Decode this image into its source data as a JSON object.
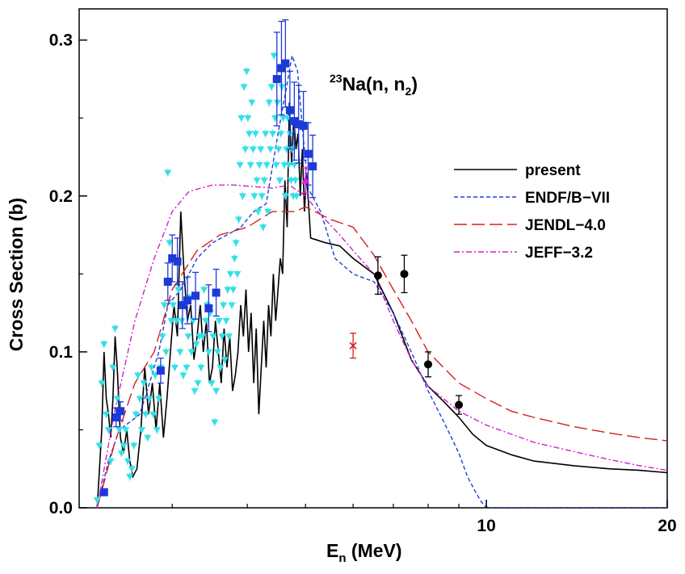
{
  "chart_data": {
    "type": "line",
    "annotation": {
      "sup": "23",
      "main": "Na(n, n",
      "sub": "2",
      "close": ")"
    },
    "xlabel": {
      "main": "E",
      "sub": "n",
      "rest": " (MeV)"
    },
    "ylabel": "Cross Section (b)",
    "x_scale": "log",
    "xlim": [
      2.1,
      20
    ],
    "ylim": [
      0,
      0.32
    ],
    "x_ticks_labeled": [
      {
        "value": 10,
        "label": "10"
      },
      {
        "value": 20,
        "label": "20"
      }
    ],
    "x_ticks_minor": [
      3,
      4,
      5,
      6,
      7,
      8,
      9
    ],
    "y_ticks": [
      {
        "value": 0.0,
        "label": "0.0"
      },
      {
        "value": 0.1,
        "label": "0.1"
      },
      {
        "value": 0.2,
        "label": "0.2"
      },
      {
        "value": 0.3,
        "label": "0.3"
      }
    ],
    "legend_position": "right",
    "series": [
      {
        "name": "present",
        "color": "#000000",
        "dash": "",
        "width": 1.6,
        "x": [
          2.25,
          2.29,
          2.31,
          2.33,
          2.35,
          2.37,
          2.39,
          2.41,
          2.43,
          2.46,
          2.49,
          2.52,
          2.55,
          2.58,
          2.62,
          2.66,
          2.7,
          2.74,
          2.78,
          2.82,
          2.86,
          2.9,
          2.94,
          2.98,
          3.02,
          3.06,
          3.1,
          3.14,
          3.18,
          3.22,
          3.26,
          3.3,
          3.34,
          3.38,
          3.42,
          3.46,
          3.5,
          3.54,
          3.58,
          3.62,
          3.66,
          3.7,
          3.74,
          3.78,
          3.82,
          3.86,
          3.9,
          3.94,
          3.98,
          4.02,
          4.06,
          4.1,
          4.14,
          4.18,
          4.22,
          4.26,
          4.3,
          4.34,
          4.38,
          4.42,
          4.46,
          4.5,
          4.54,
          4.58,
          4.62,
          4.66,
          4.7,
          4.74,
          4.78,
          4.82,
          4.86,
          4.9,
          4.94,
          4.98,
          5.02,
          5.1,
          5.2,
          5.4,
          5.7,
          6.0,
          6.5,
          7.0,
          7.5,
          8.0,
          8.5,
          9.0,
          9.5,
          10,
          11,
          12,
          14,
          16,
          18,
          20
        ],
        "y": [
          0.0,
          0.05,
          0.1,
          0.07,
          0.06,
          0.045,
          0.07,
          0.11,
          0.09,
          0.045,
          0.035,
          0.05,
          0.03,
          0.02,
          0.025,
          0.05,
          0.09,
          0.06,
          0.08,
          0.05,
          0.08,
          0.045,
          0.07,
          0.1,
          0.13,
          0.11,
          0.19,
          0.15,
          0.12,
          0.13,
          0.095,
          0.11,
          0.13,
          0.1,
          0.12,
          0.08,
          0.09,
          0.12,
          0.1,
          0.08,
          0.115,
          0.09,
          0.11,
          0.075,
          0.085,
          0.1,
          0.13,
          0.11,
          0.14,
          0.1,
          0.125,
          0.08,
          0.115,
          0.06,
          0.09,
          0.12,
          0.09,
          0.13,
          0.11,
          0.15,
          0.12,
          0.14,
          0.16,
          0.15,
          0.21,
          0.18,
          0.26,
          0.22,
          0.25,
          0.23,
          0.24,
          0.2,
          0.23,
          0.19,
          0.215,
          0.173,
          0.172,
          0.17,
          0.168,
          0.16,
          0.15,
          0.125,
          0.095,
          0.078,
          0.068,
          0.058,
          0.047,
          0.04,
          0.034,
          0.03,
          0.027,
          0.025,
          0.024,
          0.0225
        ]
      },
      {
        "name": "ENDF/B−VII",
        "color": "#1f3fd6",
        "dash": "5,3",
        "width": 1.4,
        "x": [
          2.25,
          2.35,
          2.45,
          2.55,
          2.65,
          2.75,
          2.85,
          2.95,
          3.1,
          3.3,
          3.5,
          3.7,
          3.9,
          4.1,
          4.3,
          4.5,
          4.65,
          4.75,
          4.85,
          4.95,
          5.05,
          5.3,
          5.6,
          6.0,
          6.5,
          7.0,
          7.5,
          8.0,
          8.5,
          9.0,
          9.3,
          9.6,
          9.8,
          9.95,
          10.1,
          11,
          14,
          20
        ],
        "y": [
          0.0,
          0.03,
          0.05,
          0.055,
          0.06,
          0.08,
          0.1,
          0.13,
          0.14,
          0.16,
          0.17,
          0.175,
          0.18,
          0.19,
          0.195,
          0.24,
          0.27,
          0.29,
          0.28,
          0.24,
          0.205,
          0.19,
          0.16,
          0.15,
          0.145,
          0.125,
          0.1,
          0.075,
          0.055,
          0.035,
          0.02,
          0.01,
          0.004,
          0.001,
          0.0,
          0.0,
          0.0,
          0.0
        ]
      },
      {
        "name": "JENDL−4.0",
        "color": "#d42020",
        "dash": "16,6",
        "width": 1.4,
        "x": [
          2.25,
          2.4,
          2.6,
          2.8,
          3.0,
          3.3,
          3.6,
          4.0,
          4.4,
          4.8,
          5.0,
          5.5,
          6.0,
          6.5,
          7.0,
          7.5,
          8.0,
          9.0,
          10,
          11,
          12,
          14,
          16,
          18,
          20
        ],
        "y": [
          0.0,
          0.04,
          0.08,
          0.1,
          0.14,
          0.165,
          0.175,
          0.18,
          0.19,
          0.19,
          0.193,
          0.185,
          0.18,
          0.162,
          0.14,
          0.12,
          0.1,
          0.08,
          0.07,
          0.062,
          0.058,
          0.052,
          0.048,
          0.045,
          0.043
        ]
      },
      {
        "name": "JEFF−3.2",
        "color": "#d020d0",
        "dash": "7,3,2,3",
        "width": 1.4,
        "x": [
          2.25,
          2.4,
          2.6,
          2.8,
          3.0,
          3.2,
          3.5,
          3.8,
          4.1,
          4.4,
          4.7,
          5.0,
          5.3,
          5.7,
          6.0,
          6.5,
          7.0,
          7.5,
          8.0,
          9.0,
          10,
          12,
          14,
          16,
          18,
          20
        ],
        "y": [
          0.0,
          0.06,
          0.12,
          0.16,
          0.19,
          0.203,
          0.207,
          0.207,
          0.206,
          0.205,
          0.207,
          0.2,
          0.188,
          0.175,
          0.165,
          0.15,
          0.12,
          0.095,
          0.078,
          0.062,
          0.053,
          0.042,
          0.036,
          0.031,
          0.027,
          0.024
        ]
      }
    ],
    "markers": [
      {
        "name": "",
        "shape": "triangle-down",
        "color": "#33e0e8",
        "x": [
          2.25,
          2.27,
          2.29,
          2.31,
          2.33,
          2.35,
          2.37,
          2.39,
          2.41,
          2.43,
          2.45,
          2.47,
          2.49,
          2.51,
          2.53,
          2.55,
          2.57,
          2.59,
          2.61,
          2.63,
          2.65,
          2.67,
          2.69,
          2.71,
          2.73,
          2.75,
          2.77,
          2.79,
          2.81,
          2.83,
          2.85,
          2.87,
          2.89,
          2.91,
          2.93,
          2.95,
          2.97,
          2.99,
          3.01,
          3.03,
          3.05,
          3.07,
          3.09,
          3.11,
          3.13,
          3.15,
          3.17,
          3.19,
          3.21,
          3.23,
          3.25,
          3.27,
          3.29,
          3.31,
          3.33,
          3.35,
          3.37,
          3.39,
          3.41,
          3.43,
          3.45,
          3.47,
          3.49,
          3.51,
          3.53,
          3.55,
          3.57,
          3.59,
          3.61,
          3.63,
          3.65,
          3.67,
          3.69,
          3.71,
          3.73,
          3.75,
          3.77,
          3.79,
          3.81,
          3.83,
          3.85,
          3.87,
          3.89,
          3.91,
          3.93,
          3.95,
          3.97,
          3.99,
          4.01,
          4.03,
          4.05,
          4.07,
          4.09,
          4.11,
          4.13,
          4.15,
          4.17,
          4.19,
          4.21,
          4.23,
          4.25,
          4.27,
          4.29,
          4.31,
          4.33,
          4.35,
          4.37,
          4.39,
          4.41,
          4.43,
          4.45,
          4.47,
          4.49,
          4.51,
          4.53,
          4.55,
          4.57,
          4.59,
          4.61,
          4.63,
          4.65,
          4.67,
          4.69,
          4.71,
          4.73,
          4.75,
          4.77,
          4.79,
          4.81,
          4.83
        ],
        "y": [
          0.005,
          0.04,
          0.08,
          0.105,
          0.06,
          0.05,
          0.03,
          0.09,
          0.115,
          0.07,
          0.05,
          0.035,
          0.04,
          0.05,
          0.03,
          0.02,
          0.025,
          0.04,
          0.06,
          0.085,
          0.07,
          0.05,
          0.08,
          0.06,
          0.045,
          0.07,
          0.09,
          0.06,
          0.085,
          0.05,
          0.07,
          0.09,
          0.11,
          0.13,
          0.1,
          0.215,
          0.17,
          0.12,
          0.13,
          0.09,
          0.12,
          0.14,
          0.1,
          0.12,
          0.085,
          0.13,
          0.09,
          0.11,
          0.135,
          0.1,
          0.12,
          0.075,
          0.105,
          0.08,
          0.11,
          0.09,
          0.11,
          0.14,
          0.12,
          0.13,
          0.1,
          0.125,
          0.08,
          0.11,
          0.055,
          0.075,
          0.1,
          0.12,
          0.09,
          0.11,
          0.13,
          0.095,
          0.12,
          0.14,
          0.11,
          0.15,
          0.13,
          0.14,
          0.16,
          0.17,
          0.15,
          0.185,
          0.22,
          0.25,
          0.2,
          0.27,
          0.23,
          0.28,
          0.25,
          0.24,
          0.22,
          0.26,
          0.23,
          0.2,
          0.24,
          0.21,
          0.19,
          0.22,
          0.23,
          0.2,
          0.18,
          0.21,
          0.24,
          0.22,
          0.19,
          0.26,
          0.23,
          0.27,
          0.24,
          0.29,
          0.25,
          0.22,
          0.26,
          0.23,
          0.21,
          0.24,
          0.27,
          0.25,
          0.22,
          0.2,
          0.23,
          0.25,
          0.22,
          0.24,
          0.21,
          0.23,
          0.2,
          0.22,
          0.21,
          0.2
        ]
      },
      {
        "name": "",
        "shape": "square",
        "color": "#1d3ad8",
        "x": [
          2.31,
          2.42,
          2.46,
          2.87,
          2.95,
          3.0,
          3.06,
          3.12,
          3.18,
          3.28,
          3.45,
          3.55,
          4.48,
          4.56,
          4.63,
          4.71,
          4.79,
          4.87,
          4.96,
          5.05,
          5.14
        ],
        "y": [
          0.01,
          0.058,
          0.062,
          0.088,
          0.145,
          0.16,
          0.158,
          0.13,
          0.133,
          0.136,
          0.128,
          0.138,
          0.275,
          0.282,
          0.285,
          0.255,
          0.248,
          0.246,
          0.245,
          0.227,
          0.219
        ],
        "err": [
          0.002,
          0.006,
          0.006,
          0.008,
          0.012,
          0.015,
          0.015,
          0.015,
          0.015,
          0.015,
          0.015,
          0.015,
          0.03,
          0.03,
          0.028,
          0.025,
          0.025,
          0.025,
          0.022,
          0.02,
          0.02
        ]
      },
      {
        "name": "",
        "shape": "triangle-up",
        "color": "#e020e0",
        "x": [
          5.0
        ],
        "y": [
          0.21
        ],
        "err": [
          0.008
        ]
      },
      {
        "name": "",
        "shape": "cross",
        "color": "#d42020",
        "x": [
          6.0
        ],
        "y": [
          0.104
        ],
        "err": [
          0.008
        ]
      },
      {
        "name": "",
        "shape": "circle",
        "color": "#000000",
        "x": [
          6.6,
          7.3,
          8.0,
          9.0
        ],
        "y": [
          0.149,
          0.15,
          0.092,
          0.066
        ],
        "err": [
          0.012,
          0.012,
          0.008,
          0.006
        ]
      }
    ]
  }
}
